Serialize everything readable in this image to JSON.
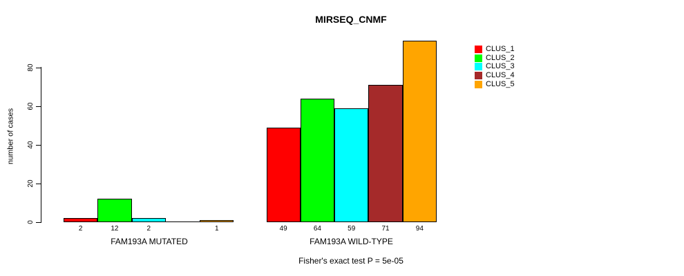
{
  "chart_data": {
    "type": "bar",
    "title": "MIRSEQ_CNMF",
    "ylabel": "number of cases",
    "xlabel": "",
    "groups": [
      "FAM193A MUTATED",
      "FAM193A WILD-TYPE"
    ],
    "series": [
      {
        "name": "CLUS_1",
        "color": "#FF0000",
        "values": [
          2,
          49
        ]
      },
      {
        "name": "CLUS_2",
        "color": "#00FF00",
        "values": [
          12,
          64
        ]
      },
      {
        "name": "CLUS_3",
        "color": "#00FFFF",
        "values": [
          2,
          59
        ]
      },
      {
        "name": "CLUS_4",
        "color": "#A52A2A",
        "values": [
          0,
          71
        ]
      },
      {
        "name": "CLUS_5",
        "color": "#FFA500",
        "values": [
          1,
          94
        ]
      }
    ],
    "yticks": [
      0,
      20,
      40,
      60,
      80
    ],
    "ylim": [
      0,
      94
    ],
    "grid": false,
    "bar_value_labels": true,
    "hide_zero_value_labels": true,
    "legend_position": "right",
    "annotation": "Fisher's exact test P = 5e-05"
  }
}
